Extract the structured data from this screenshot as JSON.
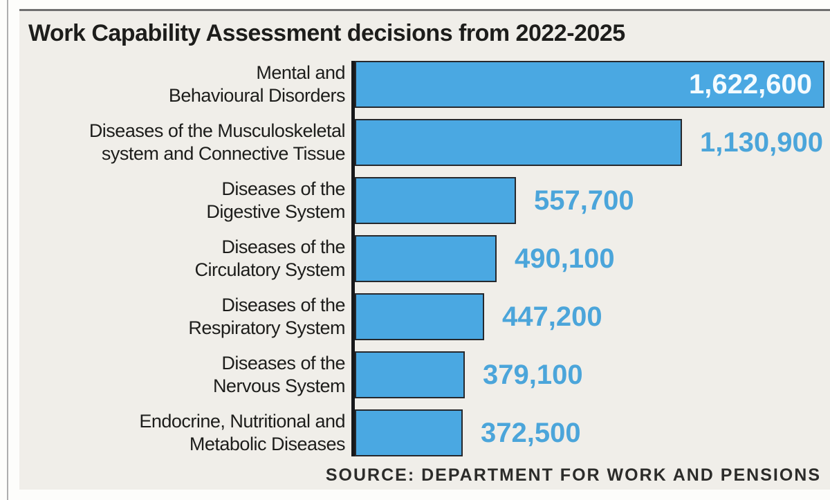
{
  "chart_data": {
    "type": "bar",
    "orientation": "horizontal",
    "title": "Work Capability Assessment decisions from 2022-2025",
    "categories": [
      "Mental and\nBehavioural Disorders",
      "Diseases of the Musculoskeletal\nsystem and Connective Tissue",
      "Diseases of the\nDigestive System",
      "Diseases of the\nCirculatory System",
      "Diseases of the\nRespiratory System",
      "Diseases of the\nNervous System",
      "Endocrine, Nutritional and\nMetabolic Diseases"
    ],
    "values": [
      1622600,
      1130900,
      557700,
      490100,
      447200,
      379100,
      372500
    ],
    "value_labels": [
      "1,622,600",
      "1,130,900",
      "557,700",
      "490,100",
      "447,200",
      "379,100",
      "372,500"
    ],
    "value_label_positions": [
      "inside",
      "outside",
      "outside",
      "outside",
      "outside",
      "outside",
      "outside"
    ],
    "xlim": [
      0,
      1622600
    ],
    "grid": false,
    "legend": false,
    "source": "SOURCE: DEPARTMENT FOR WORK AND PENSIONS",
    "colors": {
      "bar_fill": "#4aa8e2",
      "bar_border": "#26282c",
      "axis_line": "#17181a",
      "panel_background": "#f0eee9",
      "title_text": "#1d1d1b",
      "value_text_outside": "#4ba5da",
      "value_text_inside": "#f4fbff"
    }
  }
}
